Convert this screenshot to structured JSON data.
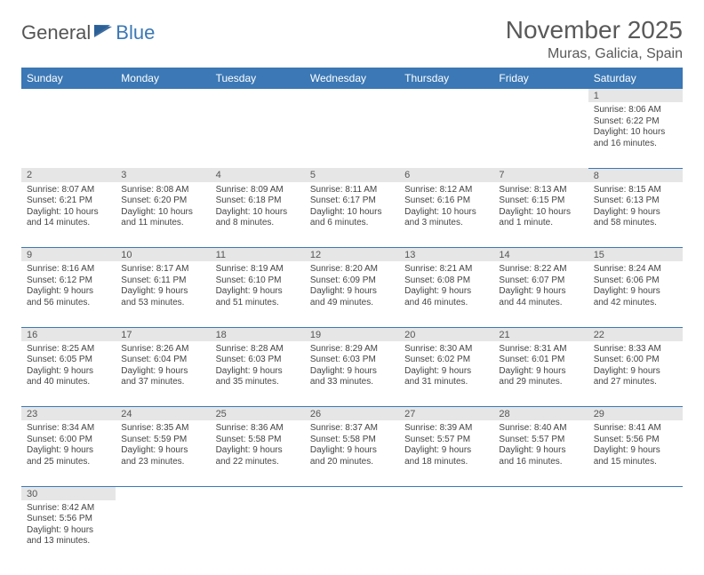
{
  "logo": {
    "text1": "General",
    "text2": "Blue"
  },
  "title": "November 2025",
  "location": "Muras, Galicia, Spain",
  "colors": {
    "header_bg": "#3b78b5",
    "daynum_bg": "#e6e6e6",
    "text": "#595959"
  },
  "weekdays": [
    "Sunday",
    "Monday",
    "Tuesday",
    "Wednesday",
    "Thursday",
    "Friday",
    "Saturday"
  ],
  "weeks": [
    [
      null,
      null,
      null,
      null,
      null,
      null,
      {
        "n": "1",
        "sr": "8:06 AM",
        "ss": "6:22 PM",
        "dl": "10 hours and 16 minutes."
      }
    ],
    [
      {
        "n": "2",
        "sr": "8:07 AM",
        "ss": "6:21 PM",
        "dl": "10 hours and 14 minutes."
      },
      {
        "n": "3",
        "sr": "8:08 AM",
        "ss": "6:20 PM",
        "dl": "10 hours and 11 minutes."
      },
      {
        "n": "4",
        "sr": "8:09 AM",
        "ss": "6:18 PM",
        "dl": "10 hours and 8 minutes."
      },
      {
        "n": "5",
        "sr": "8:11 AM",
        "ss": "6:17 PM",
        "dl": "10 hours and 6 minutes."
      },
      {
        "n": "6",
        "sr": "8:12 AM",
        "ss": "6:16 PM",
        "dl": "10 hours and 3 minutes."
      },
      {
        "n": "7",
        "sr": "8:13 AM",
        "ss": "6:15 PM",
        "dl": "10 hours and 1 minute."
      },
      {
        "n": "8",
        "sr": "8:15 AM",
        "ss": "6:13 PM",
        "dl": "9 hours and 58 minutes."
      }
    ],
    [
      {
        "n": "9",
        "sr": "8:16 AM",
        "ss": "6:12 PM",
        "dl": "9 hours and 56 minutes."
      },
      {
        "n": "10",
        "sr": "8:17 AM",
        "ss": "6:11 PM",
        "dl": "9 hours and 53 minutes."
      },
      {
        "n": "11",
        "sr": "8:19 AM",
        "ss": "6:10 PM",
        "dl": "9 hours and 51 minutes."
      },
      {
        "n": "12",
        "sr": "8:20 AM",
        "ss": "6:09 PM",
        "dl": "9 hours and 49 minutes."
      },
      {
        "n": "13",
        "sr": "8:21 AM",
        "ss": "6:08 PM",
        "dl": "9 hours and 46 minutes."
      },
      {
        "n": "14",
        "sr": "8:22 AM",
        "ss": "6:07 PM",
        "dl": "9 hours and 44 minutes."
      },
      {
        "n": "15",
        "sr": "8:24 AM",
        "ss": "6:06 PM",
        "dl": "9 hours and 42 minutes."
      }
    ],
    [
      {
        "n": "16",
        "sr": "8:25 AM",
        "ss": "6:05 PM",
        "dl": "9 hours and 40 minutes."
      },
      {
        "n": "17",
        "sr": "8:26 AM",
        "ss": "6:04 PM",
        "dl": "9 hours and 37 minutes."
      },
      {
        "n": "18",
        "sr": "8:28 AM",
        "ss": "6:03 PM",
        "dl": "9 hours and 35 minutes."
      },
      {
        "n": "19",
        "sr": "8:29 AM",
        "ss": "6:03 PM",
        "dl": "9 hours and 33 minutes."
      },
      {
        "n": "20",
        "sr": "8:30 AM",
        "ss": "6:02 PM",
        "dl": "9 hours and 31 minutes."
      },
      {
        "n": "21",
        "sr": "8:31 AM",
        "ss": "6:01 PM",
        "dl": "9 hours and 29 minutes."
      },
      {
        "n": "22",
        "sr": "8:33 AM",
        "ss": "6:00 PM",
        "dl": "9 hours and 27 minutes."
      }
    ],
    [
      {
        "n": "23",
        "sr": "8:34 AM",
        "ss": "6:00 PM",
        "dl": "9 hours and 25 minutes."
      },
      {
        "n": "24",
        "sr": "8:35 AM",
        "ss": "5:59 PM",
        "dl": "9 hours and 23 minutes."
      },
      {
        "n": "25",
        "sr": "8:36 AM",
        "ss": "5:58 PM",
        "dl": "9 hours and 22 minutes."
      },
      {
        "n": "26",
        "sr": "8:37 AM",
        "ss": "5:58 PM",
        "dl": "9 hours and 20 minutes."
      },
      {
        "n": "27",
        "sr": "8:39 AM",
        "ss": "5:57 PM",
        "dl": "9 hours and 18 minutes."
      },
      {
        "n": "28",
        "sr": "8:40 AM",
        "ss": "5:57 PM",
        "dl": "9 hours and 16 minutes."
      },
      {
        "n": "29",
        "sr": "8:41 AM",
        "ss": "5:56 PM",
        "dl": "9 hours and 15 minutes."
      }
    ],
    [
      {
        "n": "30",
        "sr": "8:42 AM",
        "ss": "5:56 PM",
        "dl": "9 hours and 13 minutes."
      },
      null,
      null,
      null,
      null,
      null,
      null
    ]
  ],
  "labels": {
    "sunrise": "Sunrise:",
    "sunset": "Sunset:",
    "daylight": "Daylight:"
  }
}
